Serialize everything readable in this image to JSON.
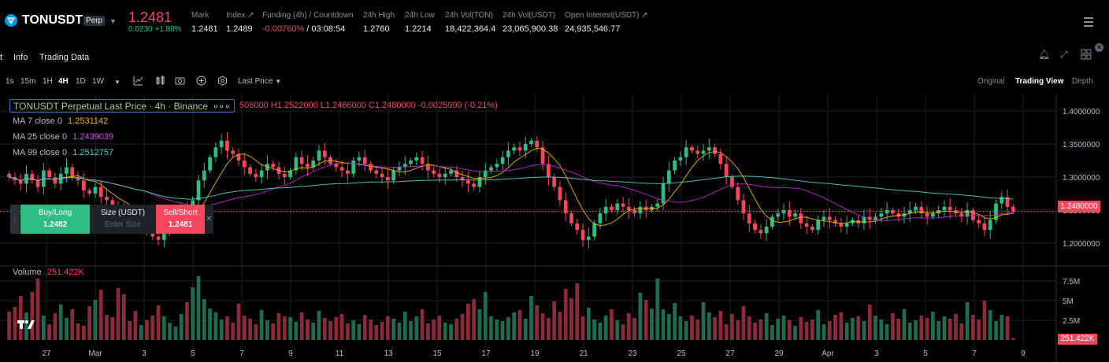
{
  "header": {
    "symbol": "TONUSDT",
    "contract_type": "Perp",
    "last_price": "1.2481",
    "change_abs": "0.0230",
    "change_pct": "+1.88%",
    "stats": [
      {
        "label": "Mark",
        "value": "1.2481",
        "value_color": "#eaecef"
      },
      {
        "label": "Index ↗",
        "value": "1.2489",
        "value_color": "#eaecef"
      },
      {
        "label": "Funding (4h) / Countdown",
        "value": "-0.00760%",
        "value2": " / 03:08:54",
        "value_color": "#f6465d"
      },
      {
        "label": "24h High",
        "value": "1.2760",
        "value_color": "#eaecef"
      },
      {
        "label": "24h Low",
        "value": "1.2214",
        "value_color": "#eaecef"
      },
      {
        "label": "24h Vol(TON)",
        "value": "18,422,364.4",
        "value_color": "#eaecef"
      },
      {
        "label": "24h Vol(USDT)",
        "value": "23,065,900.38",
        "value_color": "#eaecef"
      },
      {
        "label": "Open Interest(USDT) ↗",
        "value": "24,935,546.77",
        "value_color": "#eaecef"
      }
    ]
  },
  "tabs": [
    "t",
    "Info",
    "Trading Data"
  ],
  "toolbar": {
    "intervals": [
      "1s",
      "15m",
      "1H",
      "4H",
      "1D",
      "1W"
    ],
    "active_interval": "4H",
    "price_type": "Last Price",
    "views": [
      "Original",
      "Trading View",
      "Depth"
    ],
    "active_view": "Trading View"
  },
  "legend": {
    "title": "TONUSDT Perpetual Last Price · 4h · Binance",
    "ohlc": "506000  H1.2522000  L1.2466000  C1.2480000  -0.0025999  (-0.21%)",
    "ma7_label": "MA 7 close 0",
    "ma7_value": "1.2531142",
    "ma25_label": "MA 25 close 0",
    "ma25_value": "1.2439039",
    "ma99_label": "MA 99 close 0",
    "ma99_value": "1.2512757",
    "volume_label": "Volume",
    "volume_value": "251.422K"
  },
  "order_panel": {
    "buy_label": "Buy/Long",
    "buy_price": "1.2482",
    "size_label": "Size (USDT)",
    "size_placeholder": "Enter Size",
    "sell_label": "Sell/Short",
    "sell_price": "1.2481"
  },
  "axes": {
    "price_ticks": [
      "1.4000000",
      "1.3500000",
      "1.3000000",
      "1.2500000",
      "1.2000000"
    ],
    "price_tick_values": [
      1.4,
      1.35,
      1.3,
      1.25,
      1.2
    ],
    "current_price_tag": "1.2480000",
    "volume_ticks": [
      "7.5M",
      "5M",
      "2.5M"
    ],
    "volume_tick_values": [
      7.5,
      5,
      2.5
    ],
    "volume_tag": "251.422K",
    "date_ticks": [
      "27",
      "Mar",
      "3",
      "5",
      "7",
      "9",
      "11",
      "13",
      "15",
      "17",
      "19",
      "21",
      "23",
      "25",
      "27",
      "29",
      "Apr",
      "3",
      "5",
      "7",
      "9"
    ]
  },
  "colors": {
    "up": "#2ebd85",
    "down": "#f6465d",
    "ma7": "#f0b90b",
    "ma25": "#c026d3",
    "ma99": "#4fd1c5"
  },
  "chart_data": {
    "type": "candlestick",
    "close_series": [
      1.3,
      1.295,
      1.29,
      1.305,
      1.295,
      1.285,
      1.31,
      1.3,
      1.29,
      1.305,
      1.315,
      1.3,
      1.295,
      1.28,
      1.275,
      1.285,
      1.27,
      1.265,
      1.255,
      1.25,
      1.245,
      1.235,
      1.23,
      1.245,
      1.225,
      1.21,
      1.205,
      1.215,
      1.225,
      1.24,
      1.25,
      1.245,
      1.265,
      1.295,
      1.31,
      1.33,
      1.345,
      1.355,
      1.34,
      1.335,
      1.325,
      1.315,
      1.305,
      1.3,
      1.31,
      1.32,
      1.315,
      1.305,
      1.3,
      1.31,
      1.33,
      1.32,
      1.315,
      1.325,
      1.34,
      1.33,
      1.32,
      1.315,
      1.31,
      1.305,
      1.325,
      1.33,
      1.32,
      1.31,
      1.305,
      1.3,
      1.295,
      1.31,
      1.315,
      1.32,
      1.325,
      1.33,
      1.32,
      1.31,
      1.305,
      1.3,
      1.305,
      1.31,
      1.3,
      1.295,
      1.29,
      1.285,
      1.3,
      1.31,
      1.315,
      1.32,
      1.33,
      1.34,
      1.345,
      1.34,
      1.35,
      1.355,
      1.345,
      1.32,
      1.3,
      1.285,
      1.265,
      1.245,
      1.23,
      1.22,
      1.205,
      1.21,
      1.23,
      1.245,
      1.255,
      1.25,
      1.26,
      1.255,
      1.25,
      1.245,
      1.255,
      1.25,
      1.255,
      1.26,
      1.29,
      1.31,
      1.325,
      1.33,
      1.345,
      1.34,
      1.335,
      1.34,
      1.345,
      1.335,
      1.32,
      1.3,
      1.285,
      1.265,
      1.245,
      1.23,
      1.22,
      1.215,
      1.225,
      1.24,
      1.245,
      1.25,
      1.24,
      1.245,
      1.23,
      1.225,
      1.22,
      1.235,
      1.24,
      1.235,
      1.23,
      1.225,
      1.23,
      1.235,
      1.23,
      1.24,
      1.235,
      1.24,
      1.245,
      1.25,
      1.245,
      1.24,
      1.245,
      1.25,
      1.255,
      1.245,
      1.24,
      1.245,
      1.25,
      1.255,
      1.25,
      1.245,
      1.24,
      1.25,
      1.235,
      1.23,
      1.22,
      1.235,
      1.26,
      1.27,
      1.255,
      1.248
    ],
    "volume_M": [
      3.6,
      4.2,
      5.6,
      3.5,
      6.1,
      7.8,
      3.1,
      2.0,
      3.4,
      4.5,
      2.8,
      3.9,
      2.1,
      1.8,
      4.3,
      5.1,
      6.4,
      3.2,
      2.9,
      6.6,
      5.8,
      2.4,
      3.7,
      1.9,
      2.5,
      3.1,
      4.4,
      3.0,
      2.2,
      1.7,
      3.3,
      4.8,
      6.7,
      8.1,
      5.2,
      4.0,
      3.5,
      2.6,
      3.0,
      2.2,
      4.6,
      3.1,
      2.7,
      2.0,
      3.8,
      2.5,
      2.1,
      3.4,
      3.0,
      2.9,
      2.3,
      3.5,
      2.6,
      2.2,
      3.7,
      2.8,
      2.4,
      2.9,
      3.3,
      2.1,
      2.5,
      2.0,
      3.2,
      2.6,
      1.9,
      2.3,
      3.0,
      2.7,
      2.2,
      3.6,
      2.4,
      3.0,
      3.9,
      2.1,
      2.6,
      3.1,
      2.2,
      2.0,
      2.7,
      3.3,
      4.6,
      5.2,
      3.9,
      6.1,
      3.0,
      2.6,
      2.4,
      2.9,
      3.5,
      3.8,
      2.7,
      5.6,
      4.4,
      3.4,
      2.8,
      4.9,
      3.6,
      6.5,
      5.3,
      7.2,
      3.0,
      4.1,
      2.6,
      2.2,
      3.1,
      3.9,
      2.5,
      2.0,
      3.4,
      2.8,
      6.0,
      5.1,
      4.0,
      7.8,
      3.9,
      3.3,
      4.7,
      3.0,
      2.4,
      3.1,
      2.6,
      4.8,
      3.5,
      2.9,
      3.7,
      2.0,
      3.3,
      2.5,
      4.3,
      3.0,
      2.2,
      2.6,
      3.4,
      1.9,
      2.7,
      3.1,
      2.5,
      1.8,
      2.9,
      2.3,
      2.6,
      3.8,
      2.0,
      2.4,
      3.2,
      3.5,
      2.2,
      2.8,
      3.0,
      2.4,
      4.5,
      3.1,
      2.6,
      2.0,
      3.4,
      2.7,
      3.9,
      2.2,
      2.5,
      3.1,
      2.8,
      3.6,
      2.4,
      3.0,
      2.7,
      3.3,
      2.1,
      4.8,
      3.2,
      2.6,
      5.0,
      3.8,
      2.4,
      3.2,
      3.0,
      0.25
    ]
  }
}
